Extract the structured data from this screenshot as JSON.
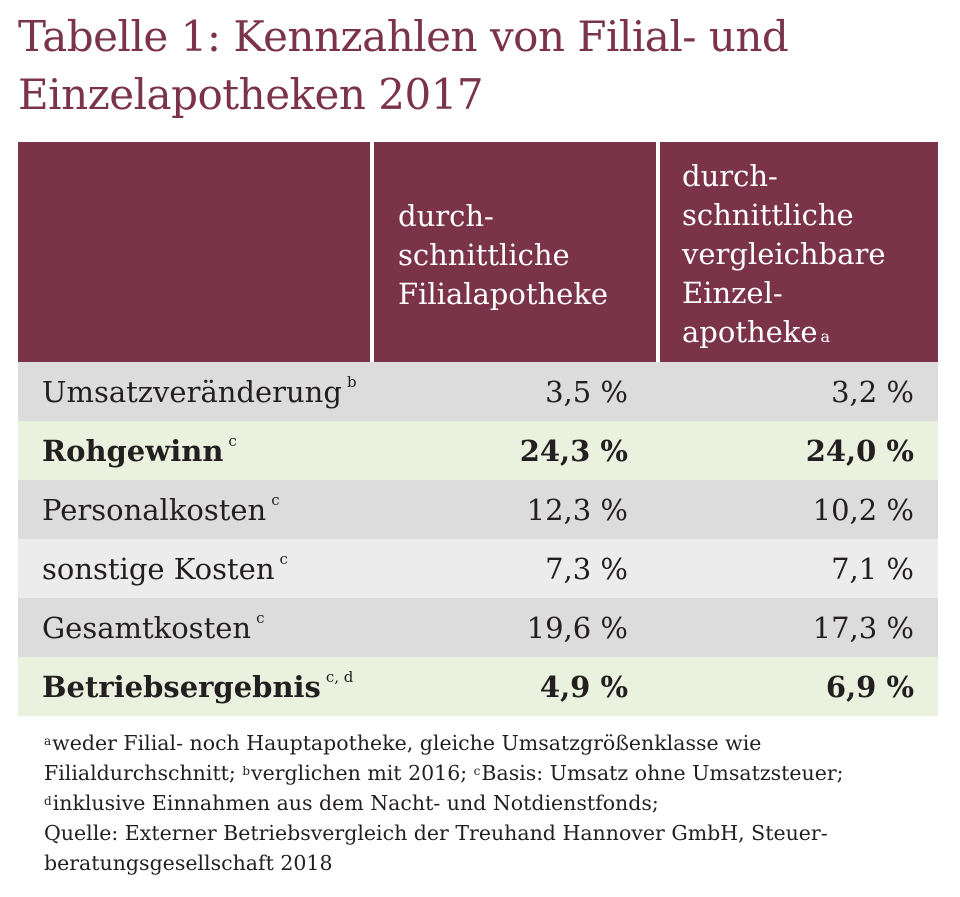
{
  "title": {
    "line1": "Tabelle 1: Kennzahlen von Filial- und",
    "line2": "Einzelapotheken 2017"
  },
  "header": {
    "col1": [
      "durch-",
      "schnittliche",
      "Filialapotheke"
    ],
    "col2": [
      "durch-",
      "schnittliche",
      "vergleichbare",
      "Einzel-",
      "apotheke"
    ],
    "col2_sup": "a"
  },
  "rows": [
    {
      "label": "Umsatzveränderung",
      "sup": "b",
      "v1": "3,5 %",
      "v2": "3,2 %"
    },
    {
      "label": "Rohgewinn",
      "sup": "c",
      "v1": "24,3 %",
      "v2": "24,0 %"
    },
    {
      "label": "Personalkosten",
      "sup": "c",
      "v1": "12,3 %",
      "v2": "10,2 %"
    },
    {
      "label": "sonstige Kosten",
      "sup": "c",
      "v1": "7,3 %",
      "v2": "7,1 %"
    },
    {
      "label": "Gesamtkosten",
      "sup": "c",
      "v1": "19,6 %",
      "v2": "17,3 %"
    },
    {
      "label": "Betriebsergebnis",
      "sup": "c, d",
      "v1": "4,9 %",
      "v2": "6,9 %"
    }
  ],
  "notes": {
    "a_sup": "a",
    "a_text": "weder Filial- noch Hauptapotheke, gleiche Umsatzgrößenklasse wie",
    "line2_text": "Filialdurchschnitt; ",
    "b_sup": "b",
    "b_text": "verglichen mit 2016; ",
    "c_sup": "c",
    "c_text": "Basis: Umsatz ohne Umsatzsteuer;",
    "d_sup": "d",
    "d_text": "inklusive Einnahmen aus dem Nacht- und Notdienstfonds;",
    "source_line1": "Quelle: Externer Betriebsvergleich der Treuhand Hannover GmbH, Steuer-",
    "source_line2": "beratungsgesellschaft 2018"
  },
  "colors": {
    "header_bg": "#7b3349",
    "title": "#7b3349",
    "row_gray_dark": "#dcdcdc",
    "row_gray_light": "#ececec",
    "row_green": "#eaf1df"
  }
}
